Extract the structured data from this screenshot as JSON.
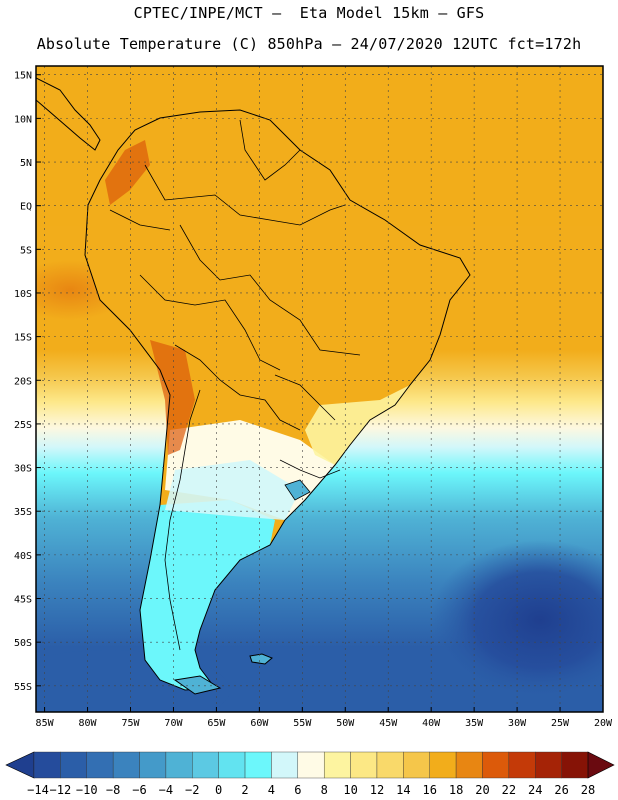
{
  "header": {
    "line1": "CPTEC/INPE/MCT –  Eta Model 15km – GFS",
    "line2": "Absolute Temperature (C) 850hPa – 24/07/2020 12UTC fct=172h"
  },
  "map": {
    "lat_labels": [
      "15N",
      "10N",
      "5N",
      "EQ",
      "5S",
      "10S",
      "15S",
      "20S",
      "25S",
      "30S",
      "35S",
      "40S",
      "45S",
      "50S",
      "55S"
    ],
    "lon_labels": [
      "85W",
      "80W",
      "75W",
      "70W",
      "65W",
      "60W",
      "55W",
      "50W",
      "45W",
      "40W",
      "35W",
      "30W",
      "25W",
      "20W"
    ],
    "lat_range": [
      -58,
      16
    ],
    "lon_range": [
      -86,
      -20
    ],
    "gridlines": true
  },
  "colorbar": {
    "labels": [
      "-14",
      "-12",
      "-10",
      "-8",
      "-6",
      "-4",
      "-2",
      "0",
      "2",
      "4",
      "6",
      "8",
      "10",
      "12",
      "14",
      "16",
      "18",
      "20",
      "22",
      "24",
      "26",
      "28"
    ],
    "colors": [
      "#1f3f8f",
      "#254c9c",
      "#2b5ea8",
      "#336fb3",
      "#3b83be",
      "#449ac9",
      "#4fb2d5",
      "#5cc9e3",
      "#62e3f0",
      "#6cf7fb",
      "#d2f7fa",
      "#fffbe6",
      "#fdf4a0",
      "#fce885",
      "#f9d96a",
      "#f5c64a",
      "#f2ad1b",
      "#e88612",
      "#dc5a0a",
      "#c43a08",
      "#a52306",
      "#861306",
      "#6a0a10"
    ]
  }
}
